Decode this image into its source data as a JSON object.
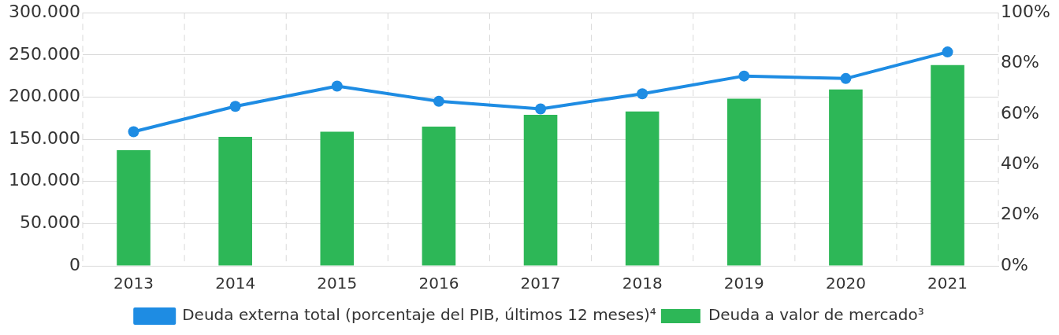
{
  "chart_data": {
    "type": "bar",
    "categories": [
      "2013",
      "2014",
      "2015",
      "2016",
      "2017",
      "2018",
      "2019",
      "2020",
      "2021"
    ],
    "series": [
      {
        "name": "Deuda a valor de mercado³",
        "color": "#2db757",
        "values": [
          137000,
          153000,
          159000,
          165000,
          179000,
          183000,
          198000,
          209000,
          238000
        ]
      },
      {
        "name": "Deuda externa total (porcentaje del PIB, últimos 12 meses)⁴",
        "type": "line",
        "axis": "y2",
        "color": "#1e8ce3",
        "marker": "circle",
        "values": [
          53,
          63,
          71,
          65,
          62,
          68,
          75,
          74,
          84.5
        ]
      }
    ],
    "ylim": [
      0,
      300000
    ],
    "yticks": [
      {
        "value": 0,
        "label": "0"
      },
      {
        "value": 50000,
        "label": "50.000"
      },
      {
        "value": 100000,
        "label": "100.000"
      },
      {
        "value": 150000,
        "label": "150.000"
      },
      {
        "value": 200000,
        "label": "200.000"
      },
      {
        "value": 250000,
        "label": "250.000"
      },
      {
        "value": 300000,
        "label": "300.000"
      }
    ],
    "y2lim": [
      0,
      100
    ],
    "y2ticks": [
      {
        "value": 0,
        "label": "0%"
      },
      {
        "value": 20,
        "label": "20%"
      },
      {
        "value": 40,
        "label": "40%"
      },
      {
        "value": 60,
        "label": "60%"
      },
      {
        "value": 80,
        "label": "80%"
      },
      {
        "value": 100,
        "label": "100%"
      }
    ],
    "grid": true,
    "legend": "bottom"
  }
}
